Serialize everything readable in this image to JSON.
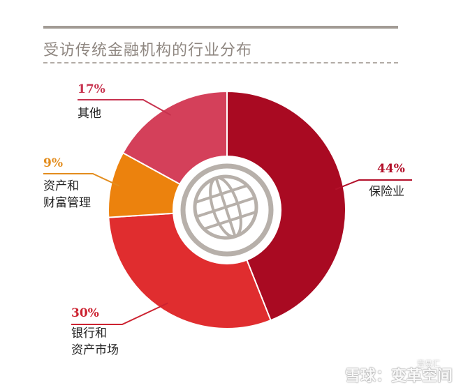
{
  "title": "受访传统金融机构的行业分布",
  "colors": {
    "title": "#8f8781",
    "rule": "#a29b95",
    "globe": "#b7b0aa",
    "label_text": "#222222"
  },
  "chart_data": {
    "type": "pie",
    "title": "受访传统金融机构的行业分布",
    "style": "donut",
    "slices": [
      {
        "label": "保险业",
        "label_lines": [
          "保险业"
        ],
        "value": 44,
        "value_label": "44%",
        "color": "#a90a22",
        "accent": "#b3102a"
      },
      {
        "label": "银行和资产市场",
        "label_lines": [
          "银行和",
          "资产市场"
        ],
        "value": 30,
        "value_label": "30%",
        "color": "#e02d2f",
        "accent": "#cc2230"
      },
      {
        "label": "资产和财富管理",
        "label_lines": [
          "资产和",
          "财富管理"
        ],
        "value": 9,
        "value_label": "9%",
        "color": "#ec820d",
        "accent": "#e38d1e"
      },
      {
        "label": "其他",
        "label_lines": [
          "其他"
        ],
        "value": 17,
        "value_label": "17%",
        "color": "#d4405a",
        "accent": "#c7324e"
      }
    ],
    "center_icon": "globe-icon"
  },
  "watermark": {
    "main": "雪球：变革空间",
    "small": "壹易汇"
  }
}
